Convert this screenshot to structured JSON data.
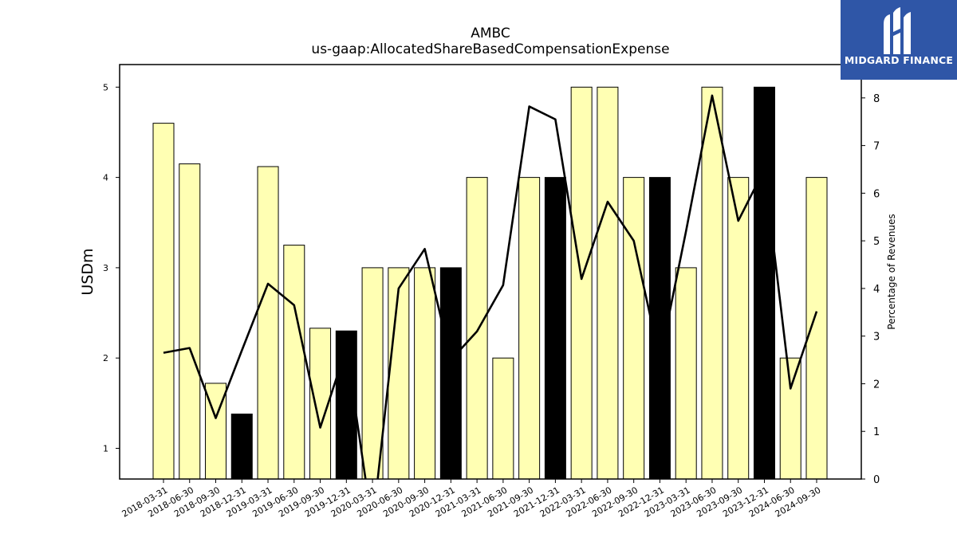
{
  "title": "AMBC",
  "subtitle": "us-gaap:AllocatedShareBasedCompensationExpense",
  "logo": {
    "name": "MIDGARD FINANCE"
  },
  "colors": {
    "bar": "#ffffb3",
    "bar_highlight": "#000000",
    "line": "#000000",
    "logo_bg": "#2f56a7"
  },
  "chart_data": {
    "type": "bar",
    "categories": [
      "2018-03-31",
      "2018-06-30",
      "2018-09-30",
      "2018-12-31",
      "2019-03-31",
      "2019-06-30",
      "2019-09-30",
      "2019-12-31",
      "2020-03-31",
      "2020-06-30",
      "2020-09-30",
      "2020-12-31",
      "2021-03-31",
      "2021-06-30",
      "2021-09-30",
      "2021-12-31",
      "2022-03-31",
      "2022-06-30",
      "2022-09-30",
      "2022-12-31",
      "2023-03-31",
      "2023-06-30",
      "2023-09-30",
      "2023-12-31",
      "2024-06-30",
      "2024-09-30"
    ],
    "series": [
      {
        "axis": "left",
        "type": "bar",
        "values": [
          4.6,
          4.15,
          1.72,
          1.38,
          4.12,
          3.25,
          2.33,
          2.3,
          3.0,
          3.0,
          3.0,
          3.0,
          4.0,
          2.0,
          4.0,
          4.0,
          5.0,
          5.0,
          4.0,
          4.0,
          3.0,
          5.0,
          4.0,
          5.0,
          2.0,
          4.0
        ],
        "highlighted": [
          false,
          false,
          false,
          true,
          false,
          false,
          false,
          true,
          false,
          false,
          false,
          true,
          false,
          false,
          false,
          true,
          false,
          false,
          false,
          true,
          false,
          false,
          false,
          true,
          false,
          false
        ]
      },
      {
        "axis": "right",
        "type": "line",
        "values": [
          2.65,
          2.75,
          1.28,
          2.7,
          4.1,
          3.65,
          1.08,
          2.75,
          -1.0,
          4.0,
          4.83,
          2.5,
          3.1,
          4.07,
          7.82,
          7.55,
          4.2,
          5.82,
          5.0,
          2.5,
          5.2,
          8.05,
          5.42,
          6.5,
          1.9,
          3.52
        ]
      }
    ],
    "ylabel": "USDm",
    "y2label": "Percentage of Revenues",
    "yticks": [
      1,
      2,
      3,
      4,
      5
    ],
    "y2ticks": [
      0,
      1,
      2,
      3,
      4,
      5,
      6,
      7,
      8
    ],
    "ylim": [
      0.66,
      5.25
    ],
    "y2lim": [
      0,
      8.7
    ],
    "grid": false
  }
}
